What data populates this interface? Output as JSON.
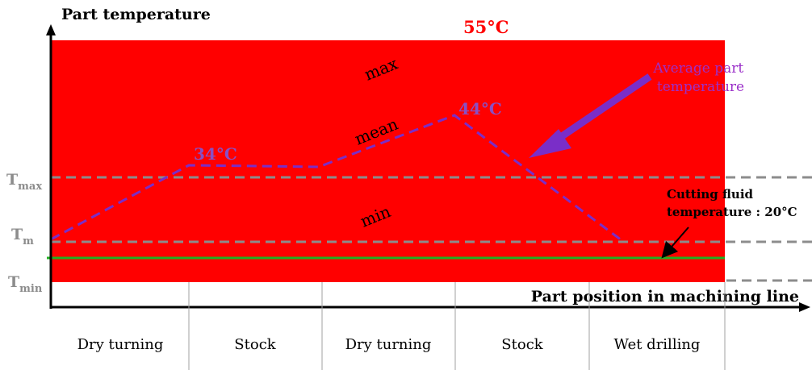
{
  "axes": {
    "y_title": "Part temperature",
    "x_title": "Part position in machining line"
  },
  "levels": {
    "t_max": {
      "base": "T",
      "sub": "max"
    },
    "t_m": {
      "base": "T",
      "sub": "m"
    },
    "t_min": {
      "base": "T",
      "sub": "min"
    }
  },
  "band_labels": {
    "max": "max",
    "mean": "mean",
    "min": "min"
  },
  "temperatures": {
    "peak": "55°C",
    "first_plateau": "34°C",
    "second_peak": "44°C"
  },
  "annotations": {
    "average_line": [
      "Average part",
      "temperature"
    ],
    "cutting_fluid": [
      "Cutting fluid",
      "temperature : 20°C"
    ]
  },
  "stages": [
    "Dry turning",
    "Stock",
    "Dry turning",
    "Stock",
    "Wet drilling"
  ],
  "colors": {
    "range_band": "#ff0000",
    "average_line": "#7a2ec8",
    "average_label": "#9b30c9",
    "fluid_line": "#22b022",
    "reference_lines": "#8c8c8c",
    "peak_label": "#ff0000",
    "temp_labels": "#8a4fc4"
  }
}
